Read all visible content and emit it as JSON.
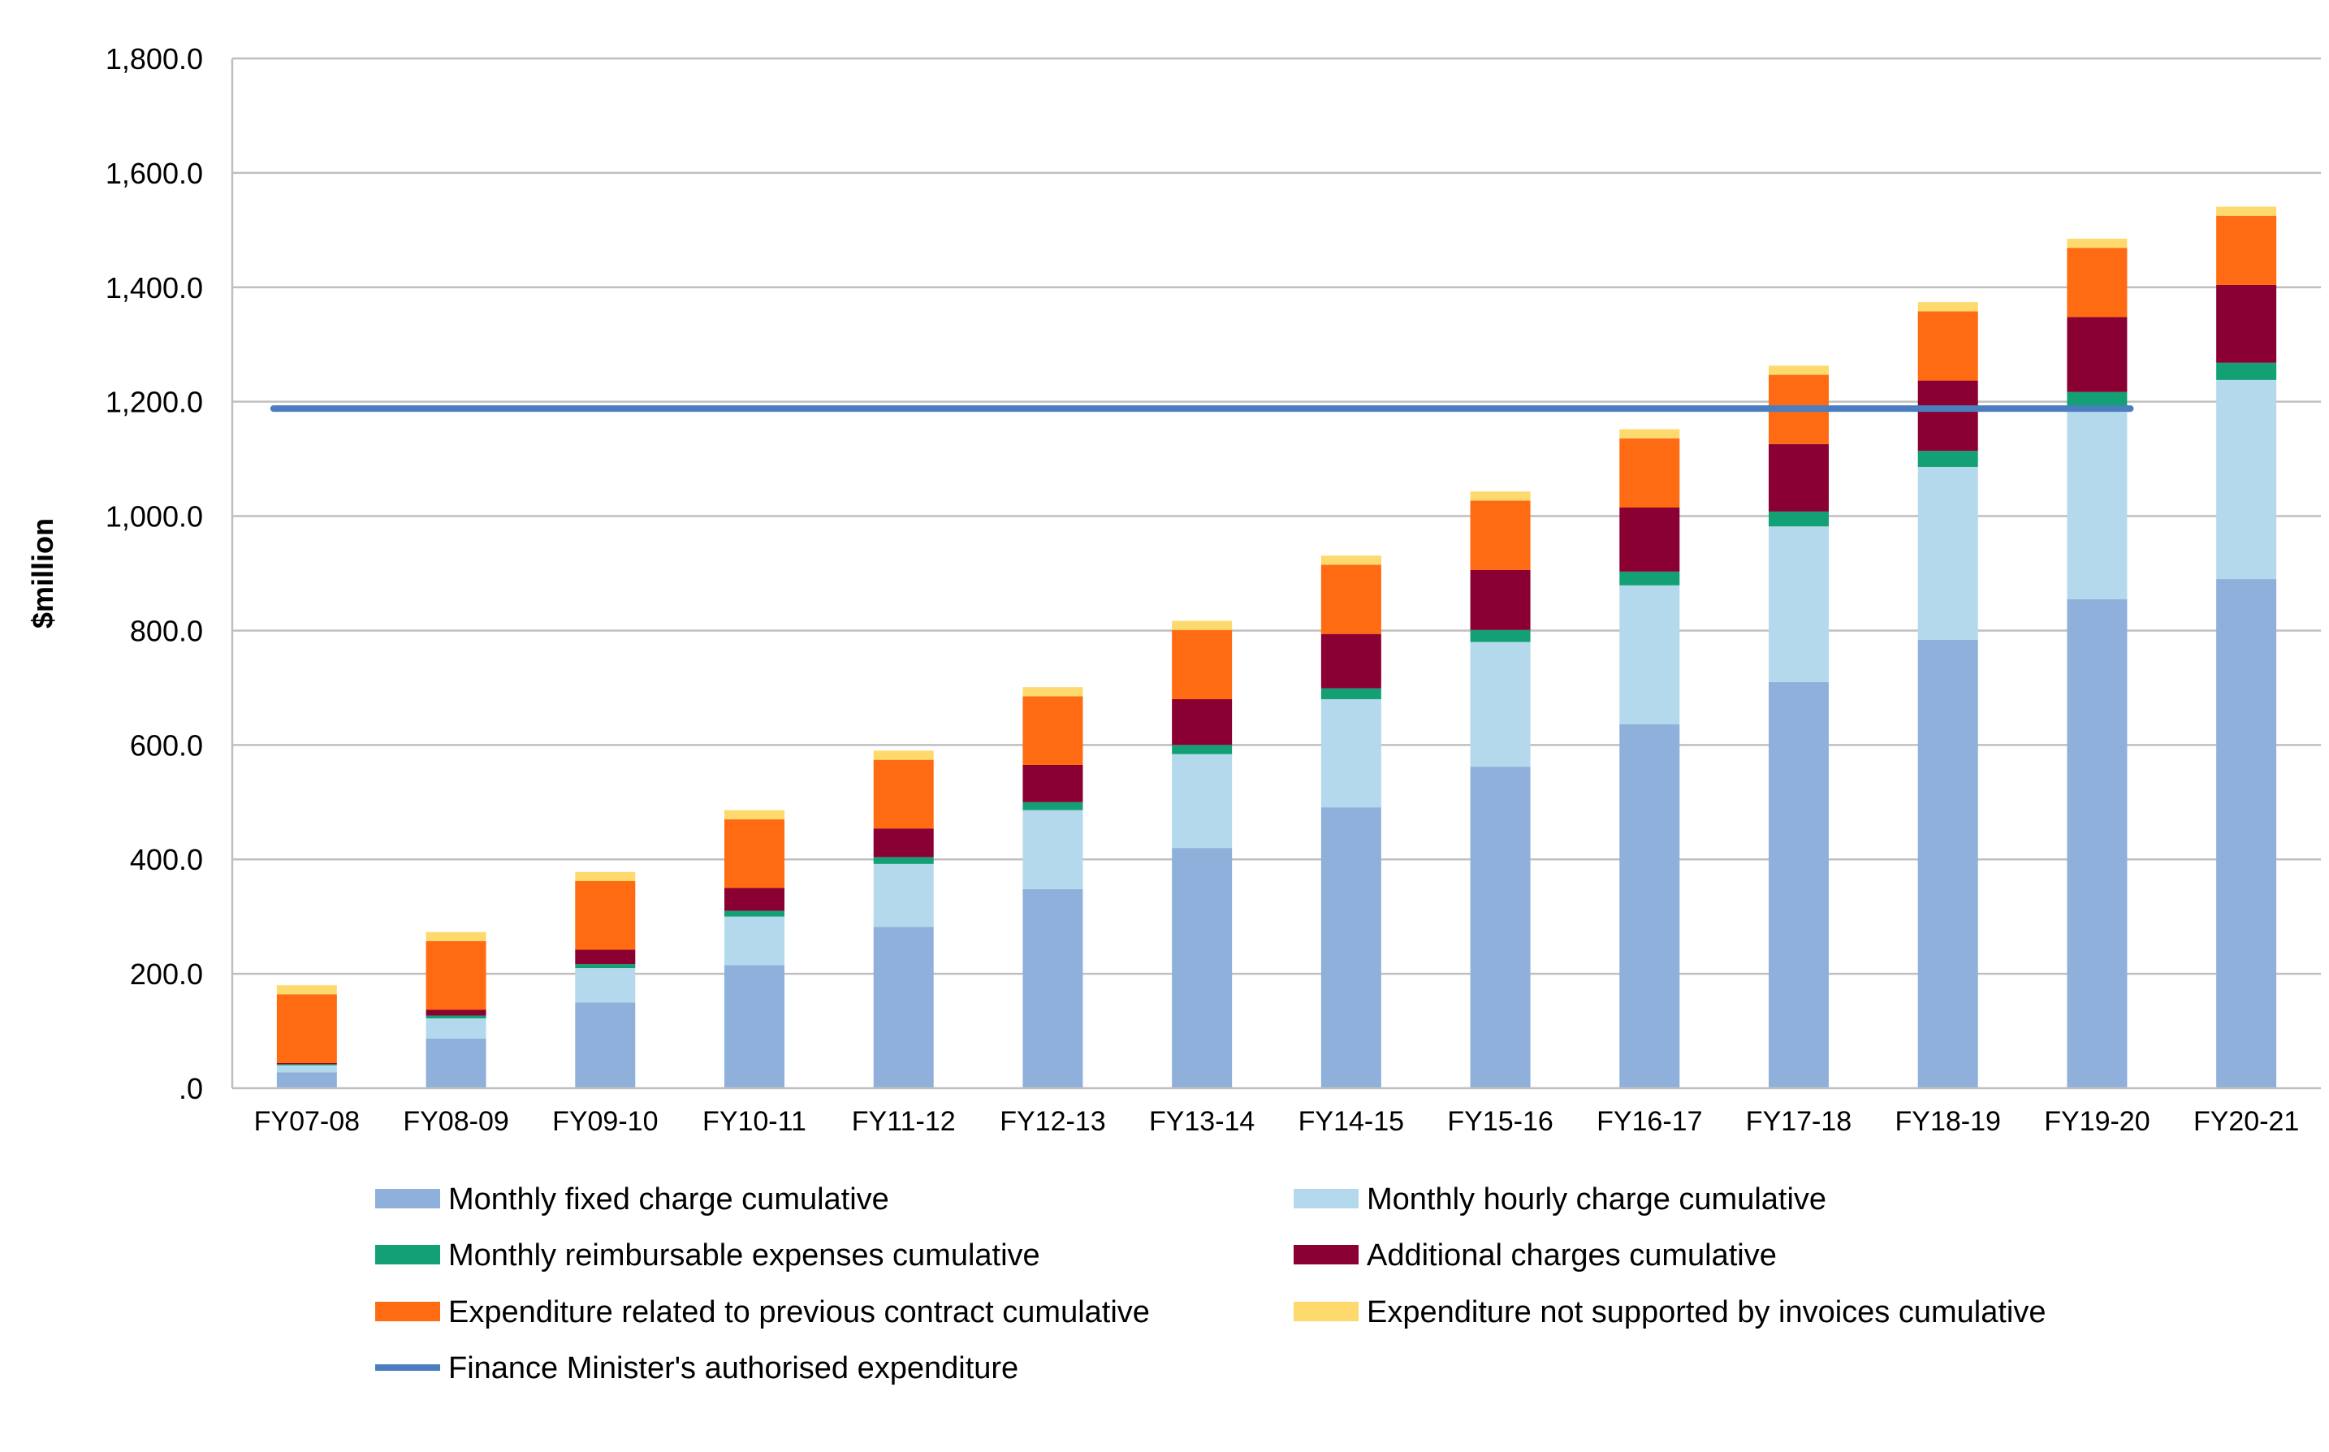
{
  "chart_data": {
    "type": "bar",
    "stacked": true,
    "title": "",
    "xlabel": "",
    "ylabel": "$million",
    "ylim": [
      0,
      1800
    ],
    "yticks": [
      0,
      200,
      400,
      600,
      800,
      1000,
      1200,
      1400,
      1600,
      1800
    ],
    "ytick_labels": [
      ".0",
      "200.0",
      "400.0",
      "600.0",
      "800.0",
      "1,000.0",
      "1,200.0",
      "1,400.0",
      "1,600.0",
      "1,800.0"
    ],
    "grid": true,
    "legend_position": "bottom",
    "categories": [
      "FY07-08",
      "FY08-09",
      "FY09-10",
      "FY10-11",
      "FY11-12",
      "FY12-13",
      "FY13-14",
      "FY14-15",
      "FY15-16",
      "FY16-17",
      "FY17-18",
      "FY18-19",
      "FY19-20",
      "FY20-21"
    ],
    "series": [
      {
        "name": "Monthly fixed charge cumulative",
        "color": "#8FB0DA",
        "values": [
          28,
          87,
          150,
          215,
          282,
          348,
          420,
          491,
          562,
          636,
          710,
          784,
          855,
          890
        ]
      },
      {
        "name": "Monthly hourly charge cumulative",
        "color": "#B5D9EC",
        "values": [
          12,
          35,
          60,
          85,
          110,
          138,
          164,
          189,
          218,
          243,
          272,
          302,
          333,
          348
        ]
      },
      {
        "name": "Monthly reimbursable expenses cumulative",
        "color": "#13A075",
        "values": [
          2,
          5,
          7,
          10,
          12,
          14,
          16,
          19,
          21,
          24,
          26,
          28,
          29,
          30
        ]
      },
      {
        "name": "Additional charges cumulative",
        "color": "#8B0032",
        "values": [
          2,
          10,
          25,
          40,
          50,
          65,
          80,
          95,
          105,
          112,
          118,
          123,
          131,
          136
        ]
      },
      {
        "name": "Expenditure related to previous contract cumulative",
        "color": "#FF6B12",
        "values": [
          120,
          120,
          120,
          120,
          120,
          120,
          121,
          121,
          121,
          121,
          121,
          121,
          121,
          121
        ]
      },
      {
        "name": "Expenditure not supported by invoices cumulative",
        "color": "#FDD96E",
        "values": [
          16,
          16,
          16,
          16,
          16,
          16,
          16,
          16,
          16,
          16,
          16,
          16,
          16,
          16
        ]
      }
    ],
    "line": {
      "name": "Finance Minister's authorised expenditure",
      "color": "#4A7EBE",
      "value": 1188,
      "from_category": "FY07-08",
      "to_category": "FY19-20"
    }
  }
}
